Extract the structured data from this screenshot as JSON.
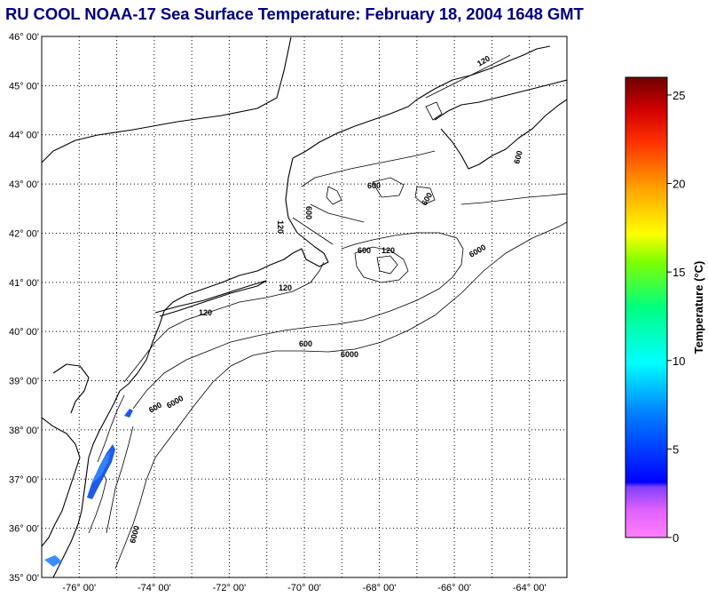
{
  "title": "RU COOL  NOAA-17  Sea Surface Temperature:  February 18, 2004 1648 GMT",
  "map": {
    "lat_labels": [
      "46° 00'",
      "45° 00'",
      "44° 00'",
      "43° 00'",
      "42° 00'",
      "41° 00'",
      "40° 00'",
      "39° 00'",
      "38° 00'",
      "37° 00'",
      "36° 00'",
      "35° 00'"
    ],
    "lon_labels": [
      "-76° 00'",
      "-74° 00'",
      "-72° 00'",
      "-70° 00'",
      "-68° 00'",
      "-66° 00'",
      "-64° 00'"
    ],
    "lat_range": [
      35,
      46
    ],
    "lon_range": [
      -77,
      -63
    ],
    "contour_labels": [
      "120",
      "600",
      "6000"
    ],
    "coastline_color": "#000000",
    "sst_patch_color": "#1e5be6"
  },
  "colorbar": {
    "title": "Temperature (°C)",
    "ticks": [
      "0",
      "5",
      "10",
      "15",
      "20",
      "25"
    ],
    "range": [
      0,
      26
    ],
    "colors": [
      "#ff80ff",
      "#c050ff",
      "#6030ff",
      "#0000ff",
      "#0080ff",
      "#00ffff",
      "#00ff80",
      "#80ff00",
      "#ffff00",
      "#ffa000",
      "#ff4000",
      "#e00000",
      "#800000"
    ]
  }
}
